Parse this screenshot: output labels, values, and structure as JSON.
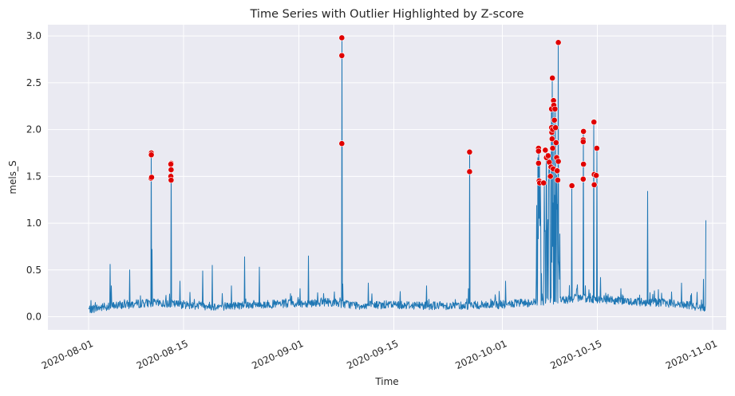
{
  "chart_data": {
    "type": "line",
    "title": "Time Series with Outlier Highlighted by Z-score",
    "xlabel": "Time",
    "ylabel": "mels_S",
    "x_range": [
      "2020-07-26",
      "2020-11-03"
    ],
    "ylim": [
      -0.14,
      3.12
    ],
    "x_ticks": [
      "2020-08-01",
      "2020-08-15",
      "2020-09-01",
      "2020-09-15",
      "2020-10-01",
      "2020-10-15",
      "2020-11-01"
    ],
    "y_ticks": [
      "0.0",
      "0.5",
      "1.0",
      "1.5",
      "2.0",
      "2.5",
      "3.0"
    ],
    "grid": true,
    "colors": {
      "line": "#1f77b4",
      "outlier": "#e00000",
      "background": "#eaeaf2",
      "grid": "#ffffff"
    },
    "series": [
      {
        "kind": "line",
        "baseline": [
          [
            "2020-08-01",
            0.08
          ],
          [
            "2020-08-05",
            0.12
          ],
          [
            "2020-08-10",
            0.15
          ],
          [
            "2020-08-15",
            0.13
          ],
          [
            "2020-08-20",
            0.11
          ],
          [
            "2020-08-25",
            0.13
          ],
          [
            "2020-09-01",
            0.14
          ],
          [
            "2020-09-05",
            0.16
          ],
          [
            "2020-09-10",
            0.12
          ],
          [
            "2020-09-15",
            0.13
          ],
          [
            "2020-09-20",
            0.12
          ],
          [
            "2020-09-25",
            0.12
          ],
          [
            "2020-10-01",
            0.13
          ],
          [
            "2020-10-05",
            0.15
          ],
          [
            "2020-10-10",
            0.18
          ],
          [
            "2020-10-12",
            0.2
          ],
          [
            "2020-10-15",
            0.19
          ],
          [
            "2020-10-20",
            0.16
          ],
          [
            "2020-10-25",
            0.15
          ],
          [
            "2020-10-31",
            0.1
          ]
        ],
        "spikes": [
          [
            "2020-08-04 04:00",
            0.56
          ],
          [
            "2020-08-04 08:00",
            0.33
          ],
          [
            "2020-08-07 01:00",
            0.5
          ],
          [
            "2020-08-10 09:00",
            0.72
          ],
          [
            "2020-08-14 12:00",
            0.38
          ],
          [
            "2020-08-17 20:00",
            0.49
          ],
          [
            "2020-08-19 06:00",
            0.55
          ],
          [
            "2020-08-22 02:00",
            0.33
          ],
          [
            "2020-08-24 00:00",
            0.64
          ],
          [
            "2020-08-26 04:00",
            0.53
          ],
          [
            "2020-09-01 04:00",
            0.3
          ],
          [
            "2020-09-02 10:00",
            0.65
          ],
          [
            "2020-09-07 11:00",
            0.35
          ],
          [
            "2020-09-11 06:00",
            0.36
          ],
          [
            "2020-09-19 20:00",
            0.33
          ],
          [
            "2020-09-26 00:00",
            0.3
          ],
          [
            "2020-10-01 12:00",
            0.38
          ],
          [
            "2020-10-15 12:00",
            0.42
          ],
          [
            "2020-10-18 12:00",
            0.3
          ],
          [
            "2020-10-22 10:00",
            1.34
          ],
          [
            "2020-10-27 10:00",
            0.36
          ],
          [
            "2020-10-30 16:00",
            0.4
          ],
          [
            "2020-10-31 04:00",
            1.03
          ]
        ],
        "outlier_spikes": [
          [
            "2020-08-10 06:00",
            1.75
          ],
          [
            "2020-08-13 04:00",
            1.64
          ],
          [
            "2020-09-07 08:00",
            2.98
          ],
          [
            "2020-09-26 04:00",
            1.76
          ],
          [
            "2020-10-06 08:00",
            1.8
          ],
          [
            "2020-10-06 14:00",
            1.45
          ],
          [
            "2020-10-07 04:00",
            1.44
          ],
          [
            "2020-10-07 12:00",
            1.78
          ],
          [
            "2020-10-07 22:00",
            1.72
          ],
          [
            "2020-10-08 06:00",
            2.2
          ],
          [
            "2020-10-08 09:00",
            2.55
          ],
          [
            "2020-10-08 14:00",
            2.31
          ],
          [
            "2020-10-08 20:00",
            2.22
          ],
          [
            "2020-10-09 06:00",
            2.93
          ],
          [
            "2020-10-11 06:00",
            1.4
          ],
          [
            "2020-10-12 23:00",
            1.98
          ],
          [
            "2020-10-14 12:00",
            2.08
          ],
          [
            "2020-10-14 22:00",
            1.8
          ]
        ]
      },
      {
        "kind": "scatter",
        "name": "outliers",
        "points": [
          [
            "2020-08-10 06:00",
            1.75
          ],
          [
            "2020-08-10 06:00",
            1.73
          ],
          [
            "2020-08-10 05:00",
            1.48
          ],
          [
            "2020-08-10 07:00",
            1.49
          ],
          [
            "2020-08-13 04:00",
            1.64
          ],
          [
            "2020-08-13 03:00",
            1.63
          ],
          [
            "2020-08-13 04:00",
            1.57
          ],
          [
            "2020-08-13 03:00",
            1.5
          ],
          [
            "2020-08-13 04:00",
            1.46
          ],
          [
            "2020-09-07 08:00",
            2.98
          ],
          [
            "2020-09-07 08:00",
            2.79
          ],
          [
            "2020-09-07 08:00",
            1.85
          ],
          [
            "2020-09-26 04:00",
            1.76
          ],
          [
            "2020-09-26 04:00",
            1.55
          ],
          [
            "2020-10-06 08:00",
            1.8
          ],
          [
            "2020-10-06 08:00",
            1.77
          ],
          [
            "2020-10-06 08:00",
            1.64
          ],
          [
            "2020-10-06 10:00",
            1.45
          ],
          [
            "2020-10-06 12:00",
            1.43
          ],
          [
            "2020-10-07 02:00",
            1.43
          ],
          [
            "2020-10-07 08:00",
            1.78
          ],
          [
            "2020-10-07 12:00",
            1.7
          ],
          [
            "2020-10-07 18:00",
            1.72
          ],
          [
            "2020-10-07 22:00",
            1.65
          ],
          [
            "2020-10-08 02:00",
            1.5
          ],
          [
            "2020-10-08 04:00",
            1.6
          ],
          [
            "2020-10-08 06:00",
            2.22
          ],
          [
            "2020-10-08 06:00",
            2.02
          ],
          [
            "2020-10-08 07:00",
            1.97
          ],
          [
            "2020-10-08 08:00",
            1.9
          ],
          [
            "2020-10-08 09:00",
            2.55
          ],
          [
            "2020-10-08 10:00",
            2.0
          ],
          [
            "2020-10-08 10:00",
            1.8
          ],
          [
            "2020-10-08 12:00",
            1.58
          ],
          [
            "2020-10-08 13:00",
            2.31
          ],
          [
            "2020-10-08 14:00",
            2.26
          ],
          [
            "2020-10-08 16:00",
            2.1
          ],
          [
            "2020-10-08 18:00",
            2.22
          ],
          [
            "2020-10-08 20:00",
            2.02
          ],
          [
            "2020-10-08 22:00",
            1.86
          ],
          [
            "2020-10-09 00:00",
            1.7
          ],
          [
            "2020-10-09 02:00",
            1.56
          ],
          [
            "2020-10-09 04:00",
            1.46
          ],
          [
            "2020-10-09 06:00",
            2.93
          ],
          [
            "2020-10-09 06:00",
            1.66
          ],
          [
            "2020-10-11 06:00",
            1.4
          ],
          [
            "2020-10-12 22:00",
            1.89
          ],
          [
            "2020-10-12 23:00",
            1.98
          ],
          [
            "2020-10-12 22:00",
            1.87
          ],
          [
            "2020-10-12 23:00",
            1.63
          ],
          [
            "2020-10-12 22:00",
            1.47
          ],
          [
            "2020-10-14 12:00",
            2.08
          ],
          [
            "2020-10-14 13:00",
            1.52
          ],
          [
            "2020-10-14 13:00",
            1.41
          ],
          [
            "2020-10-14 22:00",
            1.8
          ],
          [
            "2020-10-14 20:00",
            1.51
          ]
        ]
      }
    ]
  }
}
